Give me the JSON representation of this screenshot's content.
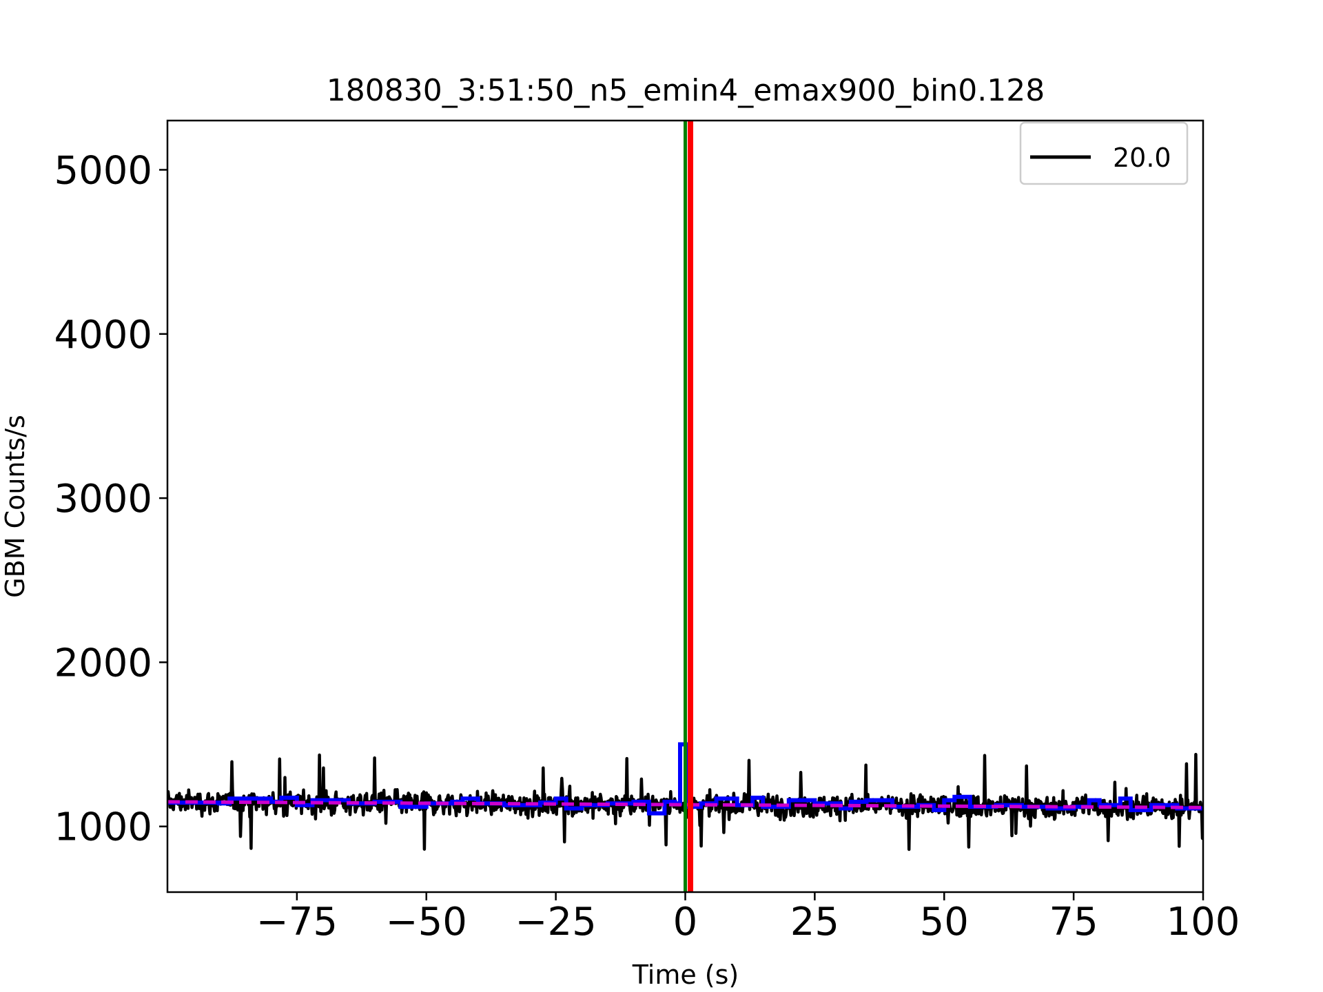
{
  "chart_data": {
    "type": "line",
    "title": "180830_3:51:50_n5_emin4_emax900_bin0.128",
    "xlabel": "Time (s)",
    "ylabel": "GBM Counts/s",
    "xlim": [
      -100,
      100
    ],
    "ylim": [
      600,
      5300
    ],
    "xticks": [
      -75,
      -50,
      -25,
      0,
      25,
      50,
      75,
      100
    ],
    "xtick_labels": [
      "−75",
      "−50",
      "−25",
      "0",
      "25",
      "50",
      "75",
      "100"
    ],
    "yticks": [
      1000,
      2000,
      3000,
      4000,
      5000
    ],
    "ytick_labels": [
      "1000",
      "2000",
      "3000",
      "4000",
      "5000"
    ],
    "grid": false,
    "legend": {
      "placement": "top-right",
      "entries": [
        {
          "label": "20.0",
          "color": "#000000"
        }
      ]
    },
    "series": [
      {
        "name": "20.0",
        "style": "noisy-line",
        "color": "#000000",
        "description_values": {
          "mean_start": 1150,
          "mean_end": 1115,
          "range_low": 830,
          "range_high": 1450
        }
      },
      {
        "style": "step",
        "color": "#0000ff",
        "x": [
          -100,
          -90,
          -88,
          -80,
          -78,
          -75,
          -72,
          -65,
          -60,
          -55,
          -50,
          -45,
          -43,
          -40,
          -35,
          -28,
          -25,
          -23,
          -20,
          -15,
          -10,
          -7,
          -4,
          -2,
          -1,
          0.6,
          3,
          6,
          10,
          13,
          15,
          20,
          25,
          30,
          32,
          35,
          40,
          45,
          48,
          50,
          52,
          55,
          60,
          65,
          70,
          75,
          78,
          80,
          84,
          86,
          90,
          95,
          100
        ],
        "y": [
          1145,
          1140,
          1170,
          1150,
          1175,
          1130,
          1160,
          1140,
          1150,
          1120,
          1140,
          1150,
          1170,
          1140,
          1130,
          1145,
          1170,
          1110,
          1130,
          1140,
          1150,
          1080,
          1150,
          1140,
          1500,
          1120,
          1140,
          1170,
          1130,
          1175,
          1120,
          1160,
          1140,
          1110,
          1150,
          1160,
          1120,
          1130,
          1100,
          1160,
          1180,
          1120,
          1130,
          1120,
          1110,
          1120,
          1160,
          1130,
          1170,
          1100,
          1130,
          1110,
          1100
        ]
      },
      {
        "style": "dashed",
        "color": "#cc00cc",
        "x": [
          -100,
          100
        ],
        "y": [
          1150,
          1115
        ]
      }
    ],
    "vlines": [
      {
        "x": 0,
        "color": "#008000"
      },
      {
        "x": 1,
        "color": "#ff0000"
      }
    ]
  }
}
